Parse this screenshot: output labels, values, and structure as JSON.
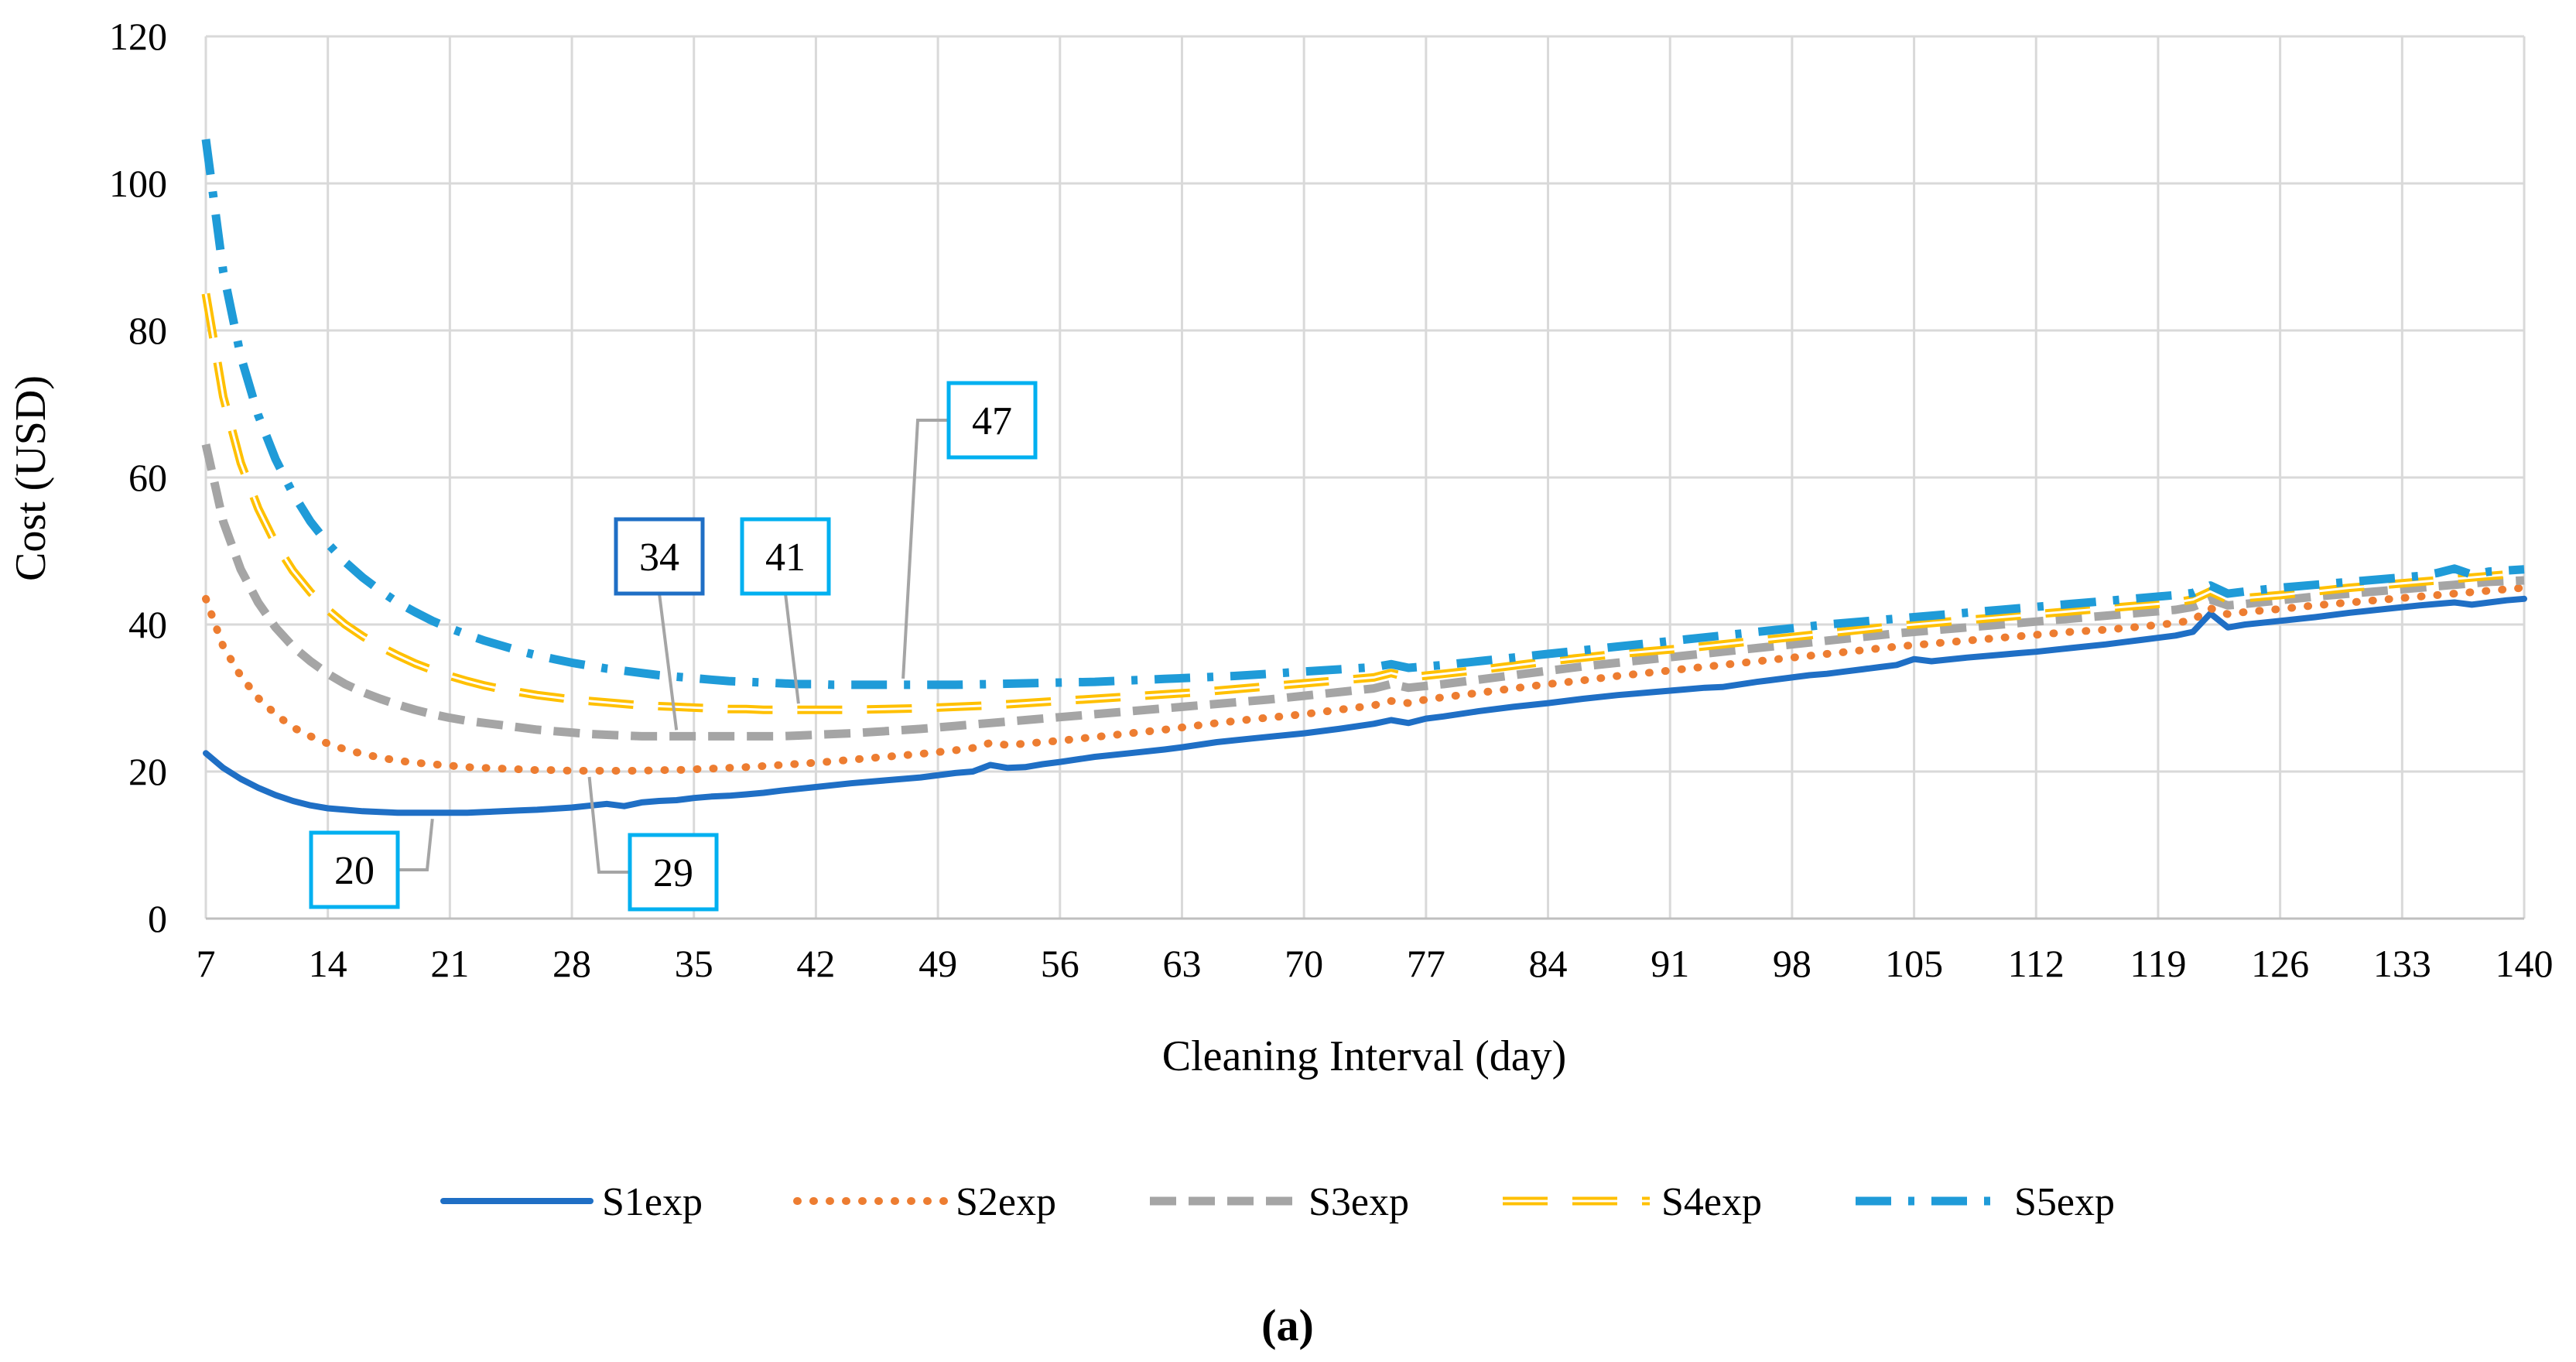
{
  "chart_data": {
    "type": "line",
    "title": "",
    "xlabel": "Cleaning Interval (day)",
    "ylabel": "Cost (USD)",
    "xlim": [
      7,
      140
    ],
    "ylim": [
      0,
      120
    ],
    "x_ticks": [
      7,
      14,
      21,
      28,
      35,
      42,
      49,
      56,
      63,
      70,
      77,
      84,
      91,
      98,
      105,
      112,
      119,
      126,
      133,
      140
    ],
    "y_ticks": [
      0,
      20,
      40,
      60,
      80,
      100,
      120
    ],
    "grid": true,
    "legend_position": "bottom",
    "caption": "(a)",
    "series": [
      {
        "name": "S1exp",
        "color": "#1f6fc5",
        "style": "solid",
        "x": [
          7,
          8,
          9,
          10,
          11,
          12,
          13,
          14,
          15,
          16,
          17,
          18,
          19,
          20,
          21,
          22,
          23,
          24,
          25,
          26,
          28,
          30,
          31,
          32,
          33,
          34,
          35,
          36,
          37,
          38,
          39,
          40,
          42,
          44,
          46,
          48,
          50,
          51,
          52,
          53,
          54,
          55,
          56,
          58,
          60,
          62,
          63,
          65,
          67,
          70,
          72,
          74,
          75,
          76,
          77,
          78,
          80,
          82,
          84,
          86,
          88,
          89,
          90,
          91,
          92,
          93,
          94,
          96,
          98,
          99,
          100,
          101,
          102,
          103,
          104,
          105,
          106,
          108,
          110,
          111,
          112,
          114,
          116,
          117,
          118,
          120,
          121,
          122,
          123,
          124,
          126,
          128,
          130,
          132,
          134,
          135,
          136,
          137,
          138,
          139,
          140
        ],
        "values": [
          22.5,
          20.5,
          19,
          17.8,
          16.8,
          16,
          15.4,
          15,
          14.8,
          14.6,
          14.5,
          14.4,
          14.4,
          14.4,
          14.4,
          14.4,
          14.5,
          14.6,
          14.7,
          14.8,
          15.1,
          15.6,
          15.3,
          15.8,
          16,
          16.1,
          16.4,
          16.6,
          16.7,
          16.9,
          17.1,
          17.4,
          17.9,
          18.4,
          18.8,
          19.2,
          19.8,
          20,
          20.9,
          20.5,
          20.6,
          21,
          21.3,
          22,
          22.5,
          23,
          23.3,
          24,
          24.5,
          25.2,
          25.8,
          26.5,
          27,
          26.6,
          27.2,
          27.5,
          28.2,
          28.8,
          29.3,
          29.9,
          30.4,
          30.6,
          30.8,
          31,
          31.2,
          31.4,
          31.5,
          32.2,
          32.8,
          33.1,
          33.3,
          33.6,
          33.9,
          34.2,
          34.5,
          35.3,
          35,
          35.5,
          35.9,
          36.1,
          36.3,
          36.8,
          37.3,
          37.6,
          37.9,
          38.5,
          39,
          41.5,
          39.6,
          40,
          40.5,
          41,
          41.6,
          42.1,
          42.6,
          42.8,
          43,
          42.7,
          43,
          43.3,
          43.5
        ]
      },
      {
        "name": "S2exp",
        "color": "#ed7d31",
        "style": "dotted",
        "x": [
          7,
          8,
          9,
          10,
          11,
          12,
          13,
          14,
          15,
          16,
          17,
          18,
          19,
          20,
          21,
          22,
          23,
          24,
          25,
          26,
          27,
          28,
          29,
          30,
          31,
          32,
          33,
          34,
          35,
          36,
          38,
          40,
          42,
          44,
          46,
          48,
          50,
          51,
          52,
          53,
          54,
          56,
          58,
          60,
          62,
          63,
          65,
          67,
          70,
          72,
          74,
          75,
          76,
          77,
          78,
          80,
          82,
          84,
          86,
          88,
          90,
          92,
          94,
          96,
          98,
          100,
          102,
          104,
          106,
          108,
          110,
          112,
          114,
          116,
          118,
          120,
          121,
          122,
          123,
          124,
          126,
          128,
          130,
          132,
          134,
          136,
          138,
          140
        ],
        "values": [
          43.5,
          37,
          33,
          30,
          27.8,
          26,
          24.8,
          23.8,
          23,
          22.4,
          21.9,
          21.5,
          21.2,
          21,
          20.8,
          20.6,
          20.5,
          20.4,
          20.3,
          20.2,
          20.2,
          20.1,
          20.1,
          20.1,
          20.1,
          20.1,
          20.2,
          20.2,
          20.3,
          20.4,
          20.6,
          20.9,
          21.2,
          21.6,
          22,
          22.4,
          22.9,
          23.2,
          23.9,
          23.6,
          23.8,
          24.2,
          24.7,
          25.2,
          25.7,
          26,
          26.6,
          27.1,
          27.8,
          28.4,
          29,
          29.6,
          29.3,
          29.8,
          30.1,
          30.7,
          31.3,
          31.9,
          32.4,
          33,
          33.5,
          34,
          34.5,
          35,
          35.5,
          36,
          36.5,
          37,
          37.4,
          37.8,
          38.2,
          38.6,
          39,
          39.3,
          39.7,
          40.2,
          40.6,
          42.2,
          41.4,
          41.7,
          42.1,
          42.6,
          43,
          43.4,
          43.8,
          44.2,
          44.6,
          45
        ]
      },
      {
        "name": "S3exp",
        "color": "#a5a5a5",
        "style": "dashed",
        "x": [
          7,
          8,
          9,
          10,
          11,
          12,
          13,
          14,
          15,
          16,
          17,
          18,
          19,
          20,
          21,
          22,
          23,
          24,
          25,
          26,
          27,
          28,
          29,
          30,
          31,
          32,
          33,
          34,
          35,
          36,
          37,
          38,
          39,
          40,
          41,
          42,
          44,
          46,
          48,
          50,
          52,
          54,
          56,
          58,
          60,
          62,
          64,
          66,
          68,
          70,
          72,
          74,
          75,
          76,
          78,
          80,
          82,
          84,
          86,
          88,
          90,
          92,
          94,
          96,
          98,
          100,
          102,
          104,
          106,
          108,
          110,
          112,
          114,
          116,
          118,
          120,
          121,
          122,
          123,
          124,
          126,
          128,
          130,
          132,
          134,
          136,
          138,
          140
        ],
        "values": [
          64.5,
          54,
          47.5,
          43,
          39.6,
          37,
          35,
          33.3,
          31.9,
          30.8,
          29.9,
          29.1,
          28.4,
          27.8,
          27.3,
          26.9,
          26.6,
          26.3,
          26,
          25.7,
          25.5,
          25.3,
          25.1,
          25,
          24.9,
          24.8,
          24.8,
          24.8,
          24.8,
          24.8,
          24.8,
          24.8,
          24.8,
          24.8,
          24.9,
          25,
          25.2,
          25.5,
          25.8,
          26.2,
          26.6,
          27,
          27.4,
          27.8,
          28.2,
          28.6,
          29,
          29.4,
          29.8,
          30.3,
          30.8,
          31.3,
          31.9,
          31.4,
          31.9,
          32.5,
          33.1,
          33.7,
          34.3,
          34.8,
          35.3,
          35.8,
          36.3,
          36.8,
          37.3,
          37.8,
          38.3,
          38.8,
          39.2,
          39.6,
          40,
          40.4,
          40.8,
          41.2,
          41.6,
          42,
          42.4,
          43.4,
          42.6,
          42.8,
          43.3,
          43.8,
          44.2,
          44.6,
          45,
          45.4,
          45.8,
          46
        ]
      },
      {
        "name": "S4exp",
        "color": "#ffc000",
        "style": "long-dash-double",
        "x": [
          7,
          8,
          9,
          10,
          11,
          12,
          13,
          14,
          15,
          16,
          17,
          18,
          19,
          20,
          21,
          22,
          23,
          24,
          25,
          26,
          27,
          28,
          29,
          30,
          31,
          32,
          33,
          34,
          35,
          36,
          37,
          38,
          39,
          40,
          41,
          42,
          43,
          44,
          46,
          48,
          50,
          52,
          54,
          56,
          58,
          60,
          62,
          64,
          66,
          68,
          70,
          72,
          74,
          75,
          76,
          78,
          80,
          82,
          84,
          86,
          88,
          90,
          92,
          94,
          96,
          98,
          100,
          102,
          104,
          106,
          108,
          110,
          112,
          114,
          116,
          118,
          120,
          121,
          122,
          123,
          124,
          126,
          128,
          130,
          132,
          134,
          136,
          138,
          140
        ],
        "values": [
          85,
          71,
          62,
          55.8,
          51,
          47.3,
          44.4,
          42,
          40,
          38.4,
          37,
          35.8,
          34.7,
          33.8,
          33,
          32.3,
          31.7,
          31.2,
          30.8,
          30.4,
          30.1,
          29.8,
          29.6,
          29.4,
          29.2,
          29,
          28.9,
          28.8,
          28.7,
          28.6,
          28.5,
          28.5,
          28.4,
          28.4,
          28.4,
          28.4,
          28.4,
          28.4,
          28.5,
          28.6,
          28.8,
          29,
          29.3,
          29.6,
          29.9,
          30.2,
          30.5,
          30.8,
          31.2,
          31.6,
          32,
          32.4,
          32.8,
          33.4,
          32.8,
          33.3,
          33.8,
          34.4,
          35,
          35.5,
          36,
          36.4,
          36.8,
          37.3,
          37.8,
          38.3,
          38.8,
          39.3,
          39.8,
          40.2,
          40.6,
          41,
          41.4,
          41.8,
          42.2,
          42.6,
          43,
          43.4,
          44.5,
          43.4,
          43.6,
          44,
          44.5,
          45,
          45.4,
          45.8,
          46.2,
          46.6,
          47
        ]
      },
      {
        "name": "S5exp",
        "color": "#1f9bd8",
        "style": "dash-dot",
        "x": [
          7,
          8,
          9,
          10,
          11,
          12,
          13,
          14,
          15,
          16,
          17,
          18,
          19,
          20,
          21,
          22,
          23,
          24,
          25,
          26,
          27,
          28,
          29,
          30,
          31,
          32,
          33,
          34,
          35,
          36,
          37,
          38,
          39,
          40,
          41,
          42,
          43,
          44,
          45,
          46,
          47,
          48,
          49,
          50,
          52,
          54,
          56,
          58,
          60,
          62,
          64,
          66,
          68,
          70,
          72,
          74,
          75,
          76,
          78,
          80,
          82,
          84,
          86,
          88,
          90,
          92,
          94,
          96,
          98,
          100,
          102,
          104,
          106,
          108,
          110,
          112,
          114,
          116,
          118,
          120,
          121,
          122,
          123,
          124,
          126,
          128,
          130,
          132,
          134,
          135,
          136,
          137,
          138,
          140
        ],
        "values": [
          106,
          88,
          76.5,
          68.5,
          62.5,
          57.8,
          54,
          51,
          48.5,
          46.4,
          44.6,
          43,
          41.7,
          40.5,
          39.5,
          38.6,
          37.8,
          37.1,
          36.4,
          35.8,
          35.3,
          34.8,
          34.4,
          34,
          33.7,
          33.4,
          33.1,
          32.9,
          32.7,
          32.5,
          32.3,
          32.2,
          32.1,
          32,
          31.9,
          31.9,
          31.8,
          31.8,
          31.8,
          31.8,
          31.8,
          31.8,
          31.8,
          31.8,
          31.9,
          32,
          32.1,
          32.2,
          32.4,
          32.6,
          32.8,
          33,
          33.3,
          33.6,
          33.9,
          34.2,
          34.6,
          34.1,
          34.5,
          35,
          35.5,
          36,
          36.5,
          37,
          37.5,
          38,
          38.5,
          39,
          39.5,
          40,
          40.4,
          40.8,
          41.2,
          41.6,
          42,
          42.4,
          42.8,
          43.2,
          43.6,
          44,
          44.3,
          45.3,
          44.2,
          44.5,
          45,
          45.4,
          45.8,
          46.2,
          46.6,
          47,
          47.6,
          46.8,
          47.2,
          47.5
        ]
      }
    ],
    "callouts": [
      {
        "label": "20",
        "series": "S1exp",
        "target_x": 20,
        "box_color": "#00b0f0"
      },
      {
        "label": "29",
        "series": "S2exp",
        "target_x": 29,
        "box_color": "#00b0f0"
      },
      {
        "label": "34",
        "series": "S3exp",
        "target_x": 34,
        "box_color": "#1f6fc5"
      },
      {
        "label": "41",
        "series": "S4exp",
        "target_x": 41,
        "box_color": "#00b0f0"
      },
      {
        "label": "47",
        "series": "S5exp",
        "target_x": 47,
        "box_color": "#00b0f0"
      }
    ]
  }
}
